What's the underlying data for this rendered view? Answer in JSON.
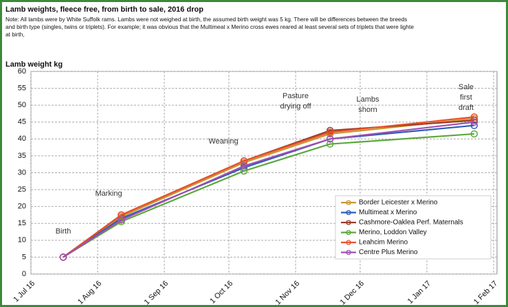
{
  "chart_data": {
    "type": "line",
    "title": "Lamb weights, fleece free, from birth to sale, 2016 drop",
    "note": [
      "Note:  All lambs were by White Suffolk rams.  Lambs were not weighed at birth, the assumed birth weight was 5 kg.  There will be differences between the breeds",
      "and birth type (singles, twins or triplets). For example; it was obvious that the Multimeat x Merino cross ewes reared at least several sets of triplets that were lighte",
      "at birth,"
    ],
    "y_label": "Lamb weight kg",
    "x": [
      "2016-07-16",
      "2016-08-12",
      "2016-10-08",
      "2016-11-17",
      "2017-01-23"
    ],
    "xlim": [
      "2016-07-01",
      "2017-02-01"
    ],
    "xticks": [
      {
        "value": "2016-07-01",
        "label": "1 Jul 16"
      },
      {
        "value": "2016-08-01",
        "label": "1 Aug 16"
      },
      {
        "value": "2016-09-01",
        "label": "1 Sep 16"
      },
      {
        "value": "2016-10-01",
        "label": "1 Oct 16"
      },
      {
        "value": "2016-11-01",
        "label": "1 Nov 16"
      },
      {
        "value": "2016-12-01",
        "label": "1 Dec 16"
      },
      {
        "value": "2017-01-01",
        "label": "1 Jan 17"
      },
      {
        "value": "2017-02-01",
        "label": "1 Feb 17"
      }
    ],
    "ylim": [
      0,
      60
    ],
    "yticks": [
      0,
      5,
      10,
      15,
      20,
      25,
      30,
      35,
      40,
      45,
      50,
      55,
      60
    ],
    "grid": true,
    "legend": "lower right",
    "series": [
      {
        "name": "Border Leicester x Merino",
        "color": "#c8962e",
        "values": [
          5,
          17,
          33,
          41.5,
          46
        ]
      },
      {
        "name": "Multimeat x Merino",
        "color": "#2e5cb8",
        "values": [
          5,
          16.5,
          31.5,
          40,
          44
        ]
      },
      {
        "name": "Cashmore-Oaklea Perf. Maternals",
        "color": "#9c3a28",
        "values": [
          5,
          17.5,
          33.5,
          42.5,
          45.5
        ]
      },
      {
        "name": "Merino, Loddon Valley",
        "color": "#5aa83c",
        "values": [
          5,
          15.5,
          30.5,
          38.5,
          41.5
        ]
      },
      {
        "name": "Leahcim Merino",
        "color": "#e8502a",
        "values": [
          5,
          17.5,
          33.5,
          42,
          46.5
        ]
      },
      {
        "name": "Centre Plus Merino",
        "color": "#a050b0",
        "values": [
          5,
          16,
          32,
          40,
          45
        ]
      }
    ],
    "annotations": [
      {
        "lines": [
          "Birth"
        ]
      },
      {
        "lines": [
          "Marking"
        ]
      },
      {
        "lines": [
          "Weaning"
        ]
      },
      {
        "lines": [
          "Pasture",
          "drying off"
        ]
      },
      {
        "lines": [
          "Lambs",
          "shorn"
        ]
      },
      {
        "lines": [
          "Sale",
          "first",
          "draft"
        ]
      }
    ]
  }
}
